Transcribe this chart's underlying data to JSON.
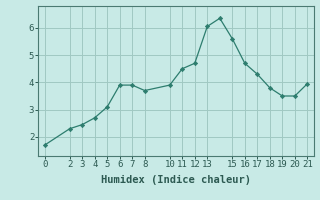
{
  "x": [
    0,
    2,
    3,
    4,
    5,
    6,
    7,
    8,
    10,
    11,
    12,
    13,
    14,
    15,
    16,
    17,
    18,
    19,
    20,
    21
  ],
  "y": [
    1.7,
    2.3,
    2.45,
    2.7,
    3.1,
    3.9,
    3.9,
    3.7,
    3.9,
    4.5,
    4.7,
    6.05,
    6.35,
    5.6,
    4.7,
    4.3,
    3.8,
    3.5,
    3.5,
    3.95
  ],
  "line_color": "#2d7d6e",
  "marker_color": "#2d7d6e",
  "bg_color": "#c8eae6",
  "grid_color": "#a0c8c2",
  "axis_color": "#4a7a72",
  "xlabel": "Humidex (Indice chaleur)",
  "xticks": [
    0,
    2,
    3,
    4,
    5,
    6,
    7,
    8,
    10,
    11,
    12,
    13,
    15,
    16,
    17,
    18,
    19,
    20,
    21
  ],
  "yticks": [
    2,
    3,
    4,
    5,
    6
  ],
  "xlim": [
    -0.5,
    21.5
  ],
  "ylim": [
    1.3,
    6.8
  ],
  "xlabel_fontsize": 7.5,
  "tick_fontsize": 6.5
}
